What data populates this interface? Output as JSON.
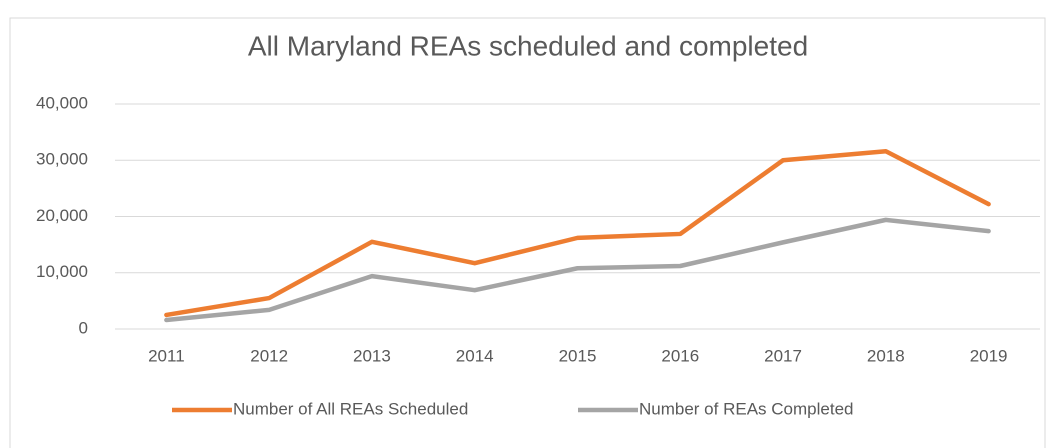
{
  "chart_data": {
    "type": "line",
    "title": "All Maryland REAs scheduled and completed",
    "categories": [
      "2011",
      "2012",
      "2013",
      "2014",
      "2015",
      "2016",
      "2017",
      "2018",
      "2019"
    ],
    "series": [
      {
        "name": "Number of All REAs Scheduled",
        "color": "#ed7d31",
        "values": [
          2500,
          5500,
          15500,
          11700,
          16200,
          16900,
          30000,
          31600,
          22200
        ]
      },
      {
        "name": "Number of REAs Completed",
        "color": "#a5a5a5",
        "values": [
          1600,
          3400,
          9400,
          6900,
          10800,
          11200,
          15400,
          19400,
          17400
        ]
      }
    ],
    "ylim": [
      0,
      40000
    ],
    "yticks": [
      0,
      {
        "value": 10000,
        "label": "10,000"
      },
      {
        "value": 20000,
        "label": "20,000"
      },
      {
        "value": 30000,
        "label": "30,000"
      },
      {
        "value": 40000,
        "label": "40,000"
      }
    ],
    "grid": true,
    "legend": "bottom"
  }
}
